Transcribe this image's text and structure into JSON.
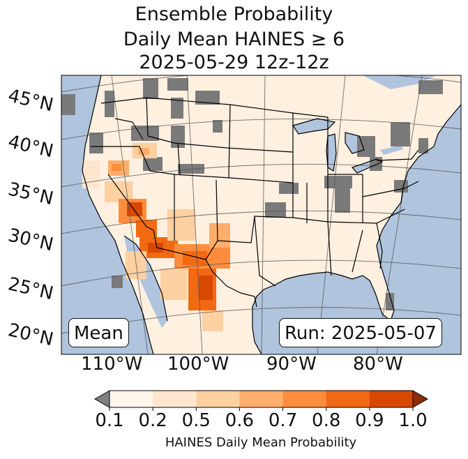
{
  "title": {
    "line1": "Ensemble Probability",
    "line2": "Daily Mean HAINES ≥ 6",
    "line3": "2025-05-29 12z-12z"
  },
  "map": {
    "projection": "lambert-conformal",
    "region": "CONUS",
    "lat_labels": [
      "45°N",
      "40°N",
      "35°N",
      "30°N",
      "25°N",
      "20°N"
    ],
    "lon_labels": [
      "110°W",
      "100°W",
      "90°W",
      "80°W"
    ],
    "ocean_color": "#b0c4de",
    "land_base_color": "#fff5eb",
    "missing_color": "#808080"
  },
  "stat_label": "Mean",
  "run_label": "Run: 2025-05-07",
  "colorbar": {
    "ticks": [
      "0.1",
      "0.2",
      "0.5",
      "0.6",
      "0.7",
      "0.8",
      "0.9",
      "1.0"
    ],
    "label": "HAINES Daily Mean Probability",
    "colors": [
      "#fff5eb",
      "#fee6ce",
      "#fdd0a2",
      "#fdae6b",
      "#fd8d3c",
      "#f16913",
      "#d94801"
    ],
    "under_color": "#808080",
    "over_color": "#8c2d04"
  }
}
